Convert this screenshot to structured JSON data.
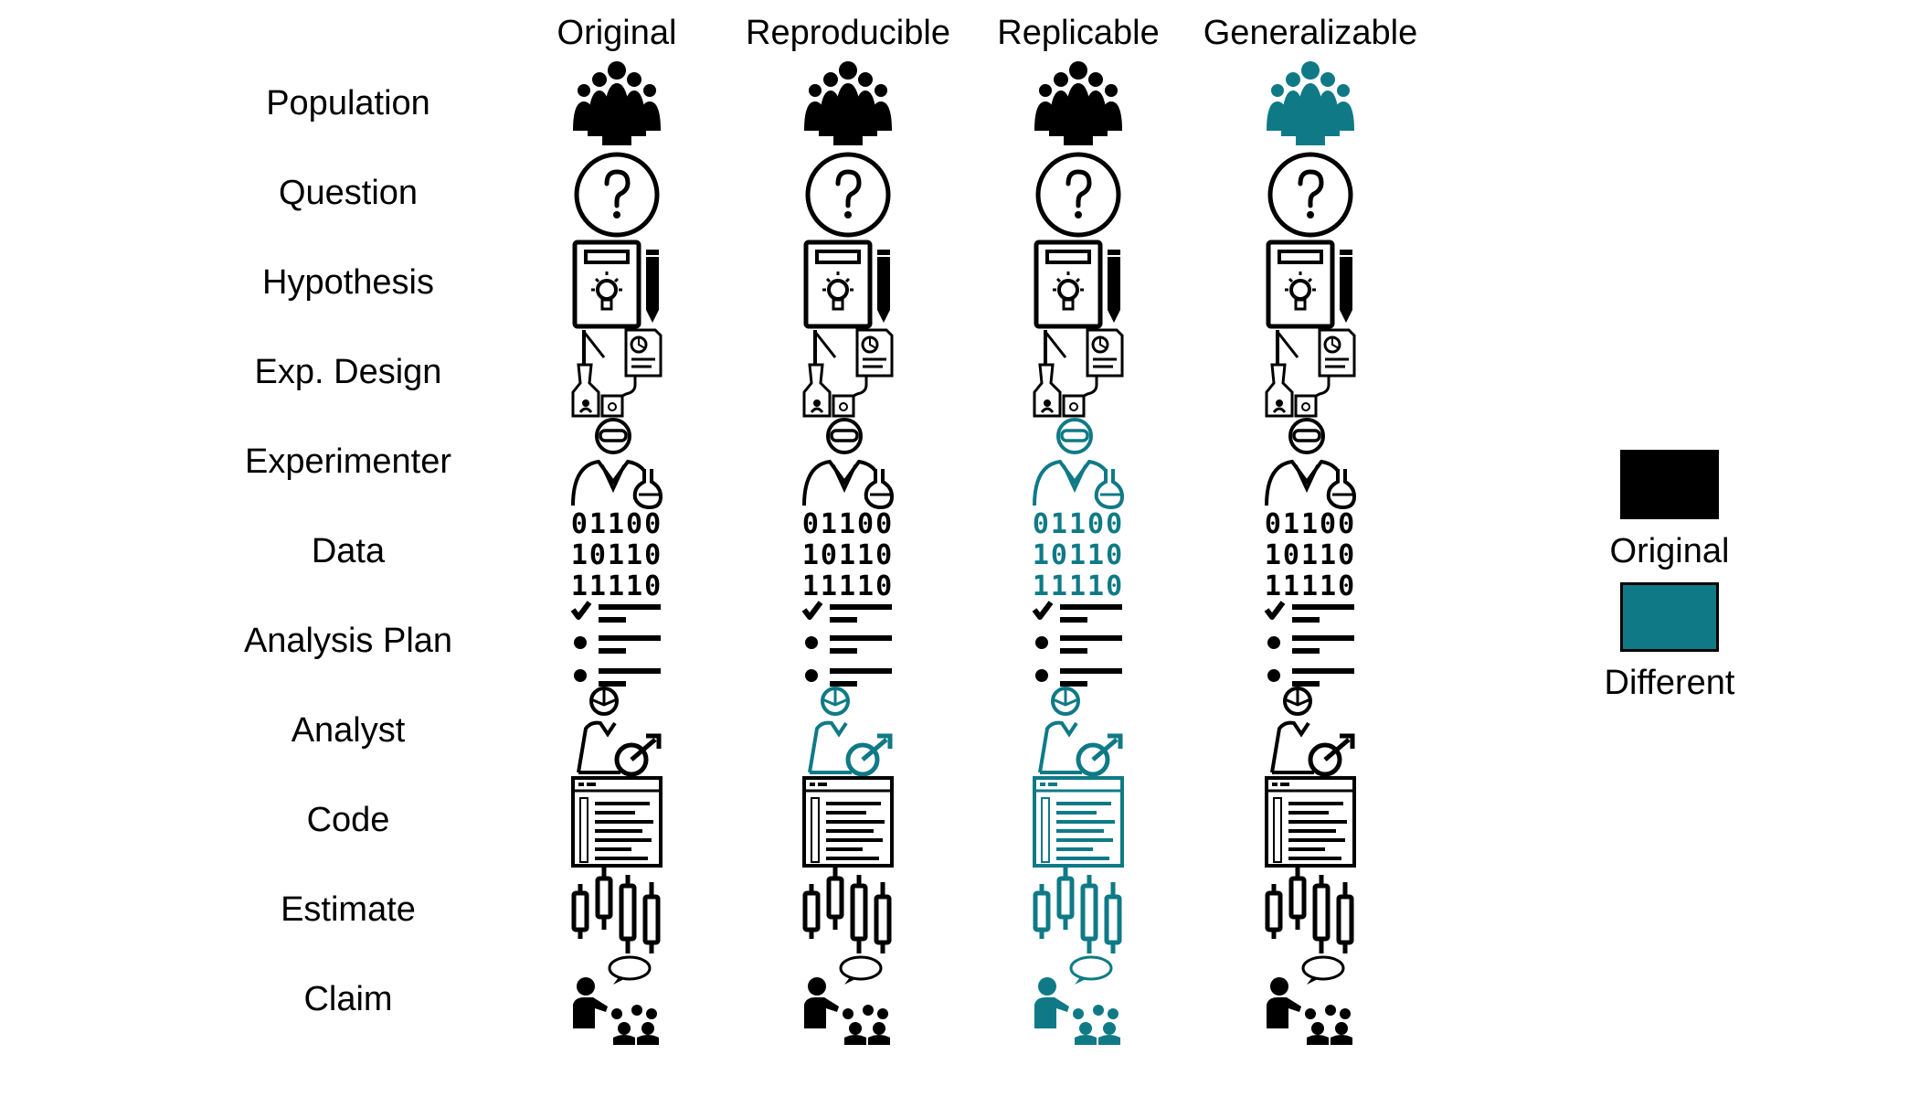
{
  "columns": [
    "Original",
    "Reproducible",
    "Replicable",
    "Generalizable"
  ],
  "rows": [
    {
      "label": "Population",
      "icon": "crowd-icon",
      "different": [
        false,
        false,
        false,
        true
      ]
    },
    {
      "label": "Question",
      "icon": "question-icon",
      "different": [
        false,
        false,
        false,
        false
      ]
    },
    {
      "label": "Hypothesis",
      "icon": "hypothesis-icon",
      "different": [
        false,
        false,
        false,
        false
      ]
    },
    {
      "label": "Exp. Design",
      "icon": "lab-design-icon",
      "different": [
        false,
        false,
        false,
        false
      ]
    },
    {
      "label": "Experimenter",
      "icon": "scientist-icon",
      "different": [
        false,
        false,
        true,
        false
      ]
    },
    {
      "label": "Data",
      "icon": "binary-data-icon",
      "different": [
        false,
        false,
        true,
        false
      ]
    },
    {
      "label": "Analysis Plan",
      "icon": "checklist-icon",
      "different": [
        false,
        false,
        false,
        false
      ]
    },
    {
      "label": "Analyst",
      "icon": "analyst-icon",
      "different": [
        false,
        true,
        true,
        false
      ]
    },
    {
      "label": "Code",
      "icon": "code-window-icon",
      "different": [
        false,
        false,
        true,
        false
      ]
    },
    {
      "label": "Estimate",
      "icon": "candlestick-icon",
      "different": [
        false,
        false,
        true,
        false
      ]
    },
    {
      "label": "Claim",
      "icon": "presenter-icon",
      "different": [
        false,
        false,
        true,
        false
      ]
    }
  ],
  "binary_lines": [
    "01100",
    "10110",
    "11110"
  ],
  "legend": {
    "original_label": "Original",
    "different_label": "Different",
    "original_color": "#000000",
    "different_color": "#0f7a86"
  }
}
